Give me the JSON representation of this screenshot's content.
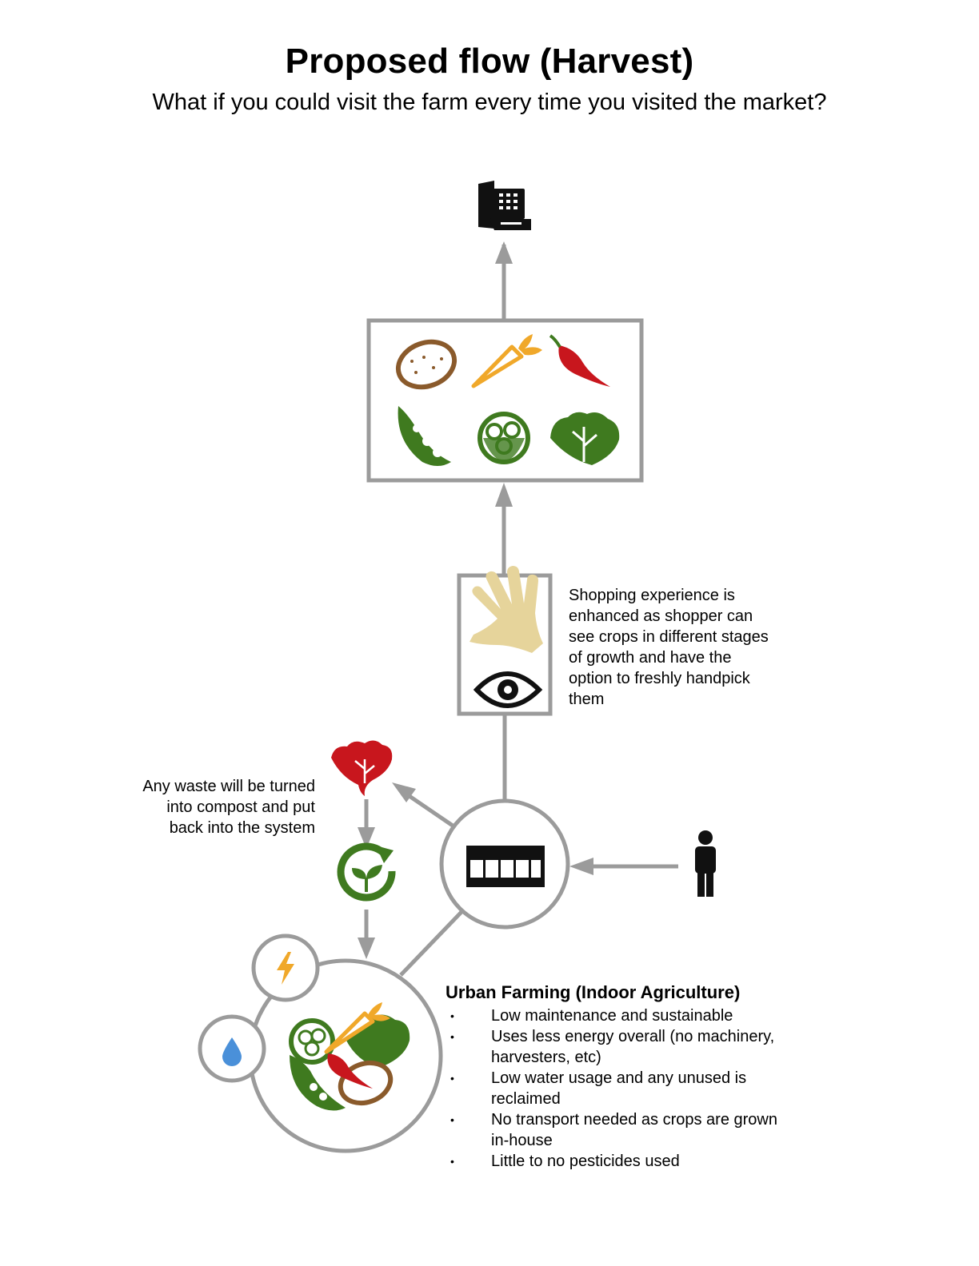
{
  "title": "Proposed flow (Harvest)",
  "subtitle": "What if you could visit the farm every time you visited the market?",
  "shopping_note": "Shopping experience is enhanced as shopper can see crops in different stages of growth and have the option to freshly handpick them",
  "waste_note": "Any waste will be turned into compost and put back into the system",
  "farm": {
    "title": "Urban Farming (Indoor Agriculture)",
    "benefits": [
      "Low maintenance and sustainable",
      "Uses less energy overall (no machinery, harvesters, etc)",
      "Low water usage and any unused is reclaimed",
      "No transport needed as crops are grown in-house",
      "Little to no pesticides used"
    ]
  },
  "icons": {
    "register": "cash-register-icon",
    "produce": [
      "potato-icon",
      "carrot-icon",
      "chili-pepper-icon",
      "pea-pod-icon",
      "cauliflower-icon",
      "lettuce-icon"
    ],
    "hand": "hand-icon",
    "eye": "eye-icon",
    "waste": "wilted-lettuce-icon",
    "compost": "compost-cycle-icon",
    "market": "market-storefront-icon",
    "shopper": "person-icon",
    "energy": "lightning-icon",
    "water": "water-drop-icon",
    "farm": "vegetable-bundle-icon"
  },
  "colors": {
    "connector": "#9b9b9b",
    "potato": "#8a5a2b",
    "carrot": "#f0a82a",
    "chili": "#c8161d",
    "green": "#3f7a1f",
    "hand": "#e6d49b",
    "water": "#4a90d9",
    "energy": "#f0a82a"
  }
}
